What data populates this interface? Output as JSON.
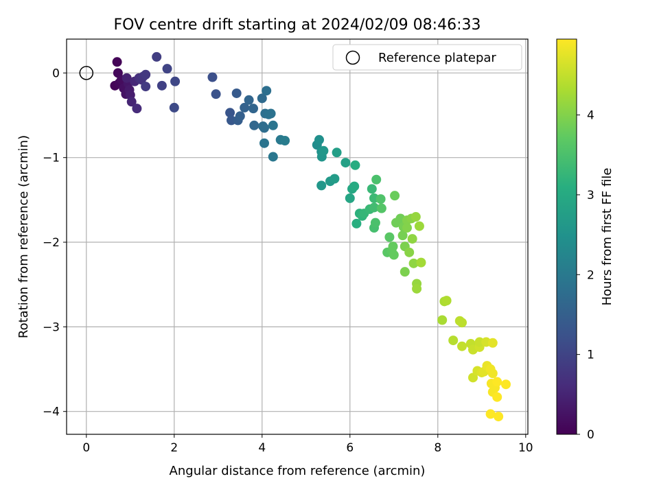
{
  "chart_data": {
    "type": "scatter",
    "title": "FOV centre drift starting at 2024/02/09 08:46:33",
    "xlabel": "Angular distance from reference (arcmin)",
    "ylabel": "Rotation from reference (arcmin)",
    "xlim": [
      -0.45,
      10.05
    ],
    "ylim": [
      -4.27,
      0.4
    ],
    "xticks": [
      0,
      2,
      4,
      6,
      8,
      10
    ],
    "xtick_labels": [
      "0",
      "2",
      "4",
      "6",
      "8",
      "10"
    ],
    "yticks": [
      0,
      -1,
      -2,
      -3,
      -4
    ],
    "ytick_labels": [
      "0",
      "−1",
      "−2",
      "−3",
      "−4"
    ],
    "grid": true,
    "legend": {
      "location": "top-right",
      "entries": [
        "Reference platepar"
      ]
    },
    "reference_point": {
      "x": 0,
      "y": 0,
      "label": "Reference platepar"
    },
    "colorbar": {
      "label": "Hours from first FF file",
      "colormap": "viridis",
      "range": [
        0,
        4.95
      ],
      "ticks": [
        0,
        1,
        2,
        3,
        4
      ],
      "tick_labels": [
        "0",
        "1",
        "2",
        "3",
        "4"
      ]
    },
    "points": [
      {
        "x": 0.7,
        "y": 0.13,
        "h": 0.05
      },
      {
        "x": 0.72,
        "y": 0.0,
        "h": 0.1
      },
      {
        "x": 0.65,
        "y": -0.15,
        "h": 0.05
      },
      {
        "x": 0.75,
        "y": -0.12,
        "h": 0.1
      },
      {
        "x": 0.8,
        "y": -0.08,
        "h": 0.15
      },
      {
        "x": 0.85,
        "y": -0.18,
        "h": 0.2
      },
      {
        "x": 0.9,
        "y": -0.25,
        "h": 0.25
      },
      {
        "x": 0.95,
        "y": -0.12,
        "h": 0.3
      },
      {
        "x": 0.98,
        "y": -0.2,
        "h": 0.35
      },
      {
        "x": 1.0,
        "y": -0.26,
        "h": 0.4
      },
      {
        "x": 0.92,
        "y": -0.06,
        "h": 0.45
      },
      {
        "x": 1.03,
        "y": -0.34,
        "h": 0.5
      },
      {
        "x": 1.1,
        "y": -0.1,
        "h": 0.55
      },
      {
        "x": 1.15,
        "y": -0.42,
        "h": 0.6
      },
      {
        "x": 1.2,
        "y": -0.06,
        "h": 0.65
      },
      {
        "x": 1.25,
        "y": -0.08,
        "h": 0.7
      },
      {
        "x": 1.3,
        "y": -0.04,
        "h": 0.75
      },
      {
        "x": 1.35,
        "y": -0.02,
        "h": 0.8
      },
      {
        "x": 1.35,
        "y": -0.16,
        "h": 0.85
      },
      {
        "x": 1.6,
        "y": 0.19,
        "h": 0.9
      },
      {
        "x": 1.72,
        "y": -0.15,
        "h": 0.95
      },
      {
        "x": 1.84,
        "y": 0.05,
        "h": 1.0
      },
      {
        "x": 2.02,
        "y": -0.1,
        "h": 1.05
      },
      {
        "x": 2.0,
        "y": -0.41,
        "h": 1.1
      },
      {
        "x": 2.87,
        "y": -0.05,
        "h": 1.2
      },
      {
        "x": 2.95,
        "y": -0.25,
        "h": 1.25
      },
      {
        "x": 3.27,
        "y": -0.47,
        "h": 1.3
      },
      {
        "x": 3.3,
        "y": -0.56,
        "h": 1.35
      },
      {
        "x": 3.42,
        "y": -0.24,
        "h": 1.4
      },
      {
        "x": 3.45,
        "y": -0.56,
        "h": 1.45
      },
      {
        "x": 3.5,
        "y": -0.51,
        "h": 1.5
      },
      {
        "x": 3.6,
        "y": -0.41,
        "h": 1.55
      },
      {
        "x": 3.7,
        "y": -0.32,
        "h": 1.6
      },
      {
        "x": 3.8,
        "y": -0.42,
        "h": 1.6
      },
      {
        "x": 3.82,
        "y": -0.62,
        "h": 1.65
      },
      {
        "x": 4.0,
        "y": -0.3,
        "h": 1.7
      },
      {
        "x": 4.02,
        "y": -0.63,
        "h": 1.75
      },
      {
        "x": 4.05,
        "y": -0.65,
        "h": 1.75
      },
      {
        "x": 4.07,
        "y": -0.48,
        "h": 1.8
      },
      {
        "x": 4.1,
        "y": -0.21,
        "h": 1.8
      },
      {
        "x": 4.15,
        "y": -0.49,
        "h": 1.85
      },
      {
        "x": 4.2,
        "y": -0.48,
        "h": 1.85
      },
      {
        "x": 4.25,
        "y": -0.62,
        "h": 1.9
      },
      {
        "x": 4.05,
        "y": -0.83,
        "h": 1.9
      },
      {
        "x": 4.25,
        "y": -0.99,
        "h": 1.95
      },
      {
        "x": 4.42,
        "y": -0.79,
        "h": 2.0
      },
      {
        "x": 4.52,
        "y": -0.8,
        "h": 2.05
      },
      {
        "x": 5.25,
        "y": -0.85,
        "h": 2.4
      },
      {
        "x": 5.3,
        "y": -0.79,
        "h": 2.45
      },
      {
        "x": 5.35,
        "y": -0.93,
        "h": 2.5
      },
      {
        "x": 5.36,
        "y": -0.99,
        "h": 2.55
      },
      {
        "x": 5.4,
        "y": -0.92,
        "h": 2.6
      },
      {
        "x": 5.35,
        "y": -1.33,
        "h": 2.6
      },
      {
        "x": 5.55,
        "y": -1.28,
        "h": 2.65
      },
      {
        "x": 5.65,
        "y": -1.25,
        "h": 2.7
      },
      {
        "x": 5.7,
        "y": -0.94,
        "h": 2.75
      },
      {
        "x": 5.9,
        "y": -1.06,
        "h": 2.8
      },
      {
        "x": 6.0,
        "y": -1.48,
        "h": 2.9
      },
      {
        "x": 6.05,
        "y": -1.37,
        "h": 2.95
      },
      {
        "x": 6.1,
        "y": -1.34,
        "h": 3.0
      },
      {
        "x": 6.12,
        "y": -1.09,
        "h": 3.05
      },
      {
        "x": 6.15,
        "y": -1.78,
        "h": 3.1
      },
      {
        "x": 6.22,
        "y": -1.66,
        "h": 3.15
      },
      {
        "x": 6.28,
        "y": -1.69,
        "h": 3.2
      },
      {
        "x": 6.32,
        "y": -1.66,
        "h": 3.25
      },
      {
        "x": 6.45,
        "y": -1.61,
        "h": 3.3
      },
      {
        "x": 6.5,
        "y": -1.37,
        "h": 3.3
      },
      {
        "x": 6.55,
        "y": -1.48,
        "h": 3.35
      },
      {
        "x": 6.55,
        "y": -1.59,
        "h": 3.4
      },
      {
        "x": 6.55,
        "y": -1.83,
        "h": 3.45
      },
      {
        "x": 6.58,
        "y": -1.77,
        "h": 3.5
      },
      {
        "x": 6.6,
        "y": -1.26,
        "h": 3.5
      },
      {
        "x": 6.7,
        "y": -1.49,
        "h": 3.55
      },
      {
        "x": 6.72,
        "y": -1.6,
        "h": 3.6
      },
      {
        "x": 6.85,
        "y": -2.12,
        "h": 3.65
      },
      {
        "x": 6.9,
        "y": -1.94,
        "h": 3.65
      },
      {
        "x": 6.95,
        "y": -2.1,
        "h": 3.7
      },
      {
        "x": 7.0,
        "y": -2.15,
        "h": 3.75
      },
      {
        "x": 6.98,
        "y": -2.05,
        "h": 3.75
      },
      {
        "x": 7.02,
        "y": -1.45,
        "h": 3.8
      },
      {
        "x": 7.05,
        "y": -1.77,
        "h": 3.85
      },
      {
        "x": 7.15,
        "y": -1.72,
        "h": 3.85
      },
      {
        "x": 7.2,
        "y": -1.92,
        "h": 3.9
      },
      {
        "x": 7.22,
        "y": -1.82,
        "h": 3.9
      },
      {
        "x": 7.25,
        "y": -2.35,
        "h": 3.95
      },
      {
        "x": 7.25,
        "y": -2.05,
        "h": 3.95
      },
      {
        "x": 7.3,
        "y": -1.74,
        "h": 4.0
      },
      {
        "x": 7.3,
        "y": -1.83,
        "h": 4.0
      },
      {
        "x": 7.35,
        "y": -2.12,
        "h": 4.05
      },
      {
        "x": 7.4,
        "y": -1.72,
        "h": 4.05
      },
      {
        "x": 7.42,
        "y": -1.96,
        "h": 4.1
      },
      {
        "x": 7.45,
        "y": -2.25,
        "h": 4.1
      },
      {
        "x": 7.5,
        "y": -1.7,
        "h": 4.15
      },
      {
        "x": 7.52,
        "y": -2.49,
        "h": 4.15
      },
      {
        "x": 7.52,
        "y": -2.55,
        "h": 4.2
      },
      {
        "x": 7.58,
        "y": -1.81,
        "h": 4.2
      },
      {
        "x": 7.62,
        "y": -2.24,
        "h": 4.25
      },
      {
        "x": 8.1,
        "y": -2.92,
        "h": 4.3
      },
      {
        "x": 8.15,
        "y": -2.7,
        "h": 4.3
      },
      {
        "x": 8.2,
        "y": -2.69,
        "h": 4.35
      },
      {
        "x": 8.35,
        "y": -3.16,
        "h": 4.4
      },
      {
        "x": 8.5,
        "y": -2.93,
        "h": 4.45
      },
      {
        "x": 8.55,
        "y": -2.95,
        "h": 4.45
      },
      {
        "x": 8.55,
        "y": -3.23,
        "h": 4.5
      },
      {
        "x": 8.75,
        "y": -3.2,
        "h": 4.5
      },
      {
        "x": 8.8,
        "y": -3.27,
        "h": 4.55
      },
      {
        "x": 8.8,
        "y": -3.6,
        "h": 4.6
      },
      {
        "x": 8.9,
        "y": -3.52,
        "h": 4.65
      },
      {
        "x": 8.95,
        "y": -3.24,
        "h": 4.6
      },
      {
        "x": 8.95,
        "y": -3.18,
        "h": 4.55
      },
      {
        "x": 9.0,
        "y": -3.54,
        "h": 4.7
      },
      {
        "x": 9.05,
        "y": -3.53,
        "h": 4.75
      },
      {
        "x": 9.1,
        "y": -3.18,
        "h": 4.65
      },
      {
        "x": 9.12,
        "y": -3.46,
        "h": 4.8
      },
      {
        "x": 9.2,
        "y": -3.5,
        "h": 4.85
      },
      {
        "x": 9.25,
        "y": -3.19,
        "h": 4.75
      },
      {
        "x": 9.25,
        "y": -3.55,
        "h": 4.85
      },
      {
        "x": 9.22,
        "y": -3.67,
        "h": 4.9
      },
      {
        "x": 9.25,
        "y": -3.77,
        "h": 4.9
      },
      {
        "x": 9.3,
        "y": -3.72,
        "h": 4.9
      },
      {
        "x": 9.35,
        "y": -3.83,
        "h": 4.95
      },
      {
        "x": 9.35,
        "y": -3.65,
        "h": 4.95
      },
      {
        "x": 9.55,
        "y": -3.68,
        "h": 4.95
      },
      {
        "x": 9.2,
        "y": -4.03,
        "h": 4.95
      },
      {
        "x": 9.38,
        "y": -4.06,
        "h": 4.95
      }
    ]
  }
}
